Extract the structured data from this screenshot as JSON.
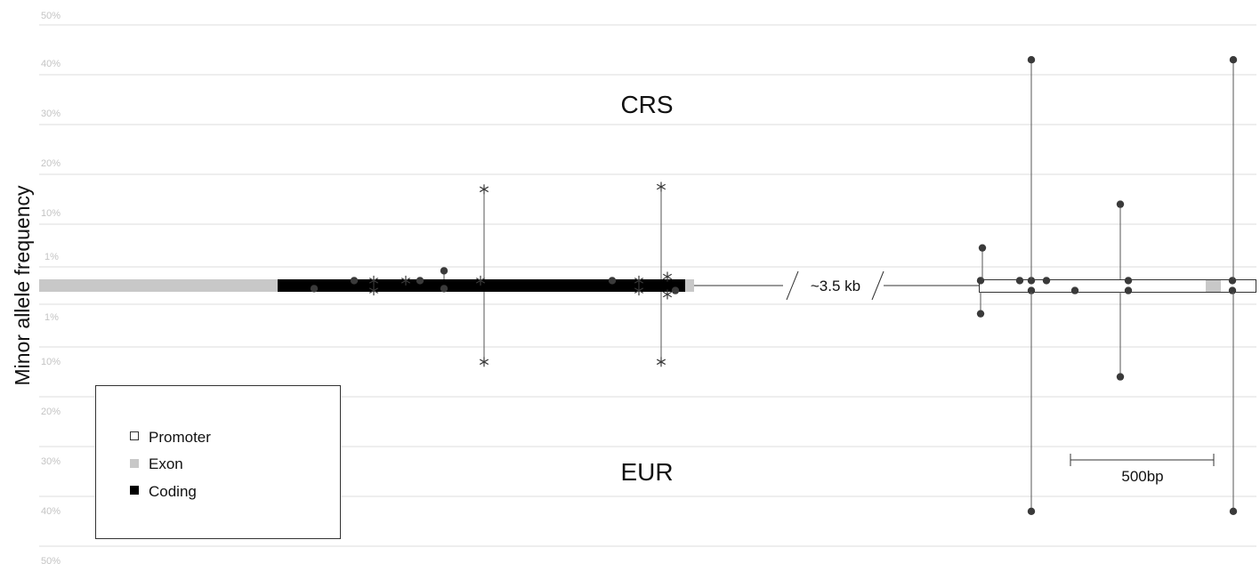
{
  "chart_data": {
    "type": "scatter",
    "ylabel": "Minor allele frequency",
    "y_axis": {
      "scale": "piecewise: 0–1% expanded, 10% steps above",
      "ticks_top": [
        "50%",
        "40%",
        "30%",
        "20%",
        "10%",
        "1%"
      ],
      "ticks_bottom": [
        "1%",
        "10%",
        "20%",
        "30%",
        "40%",
        "50%"
      ],
      "grid": true
    },
    "groups": {
      "top": "CRS",
      "bottom": "EUR"
    },
    "annotations": {
      "gap": "~3.5 kb",
      "scale_bar": "500bp"
    },
    "legend": {
      "placement": "bottom-left",
      "items": [
        {
          "label": "Promoter",
          "color": "#ffffff",
          "stroke": "#333333"
        },
        {
          "label": "Exon",
          "color": "#c8c8c8"
        },
        {
          "label": "Coding",
          "color": "#000000"
        }
      ]
    },
    "colors": {
      "coding": "#000000",
      "exon": "#c8c8c8",
      "promoter": "#ffffff",
      "marker": "#3a3a3a",
      "grid": "#d9d9d9",
      "stem": "#555555"
    },
    "marker_types": {
      "dot": "filled circle",
      "star": "asterisk"
    },
    "variants": [
      {
        "pos": 353,
        "crs": 0,
        "eur": 0.2,
        "marker": "dot"
      },
      {
        "pos": 398,
        "crs": 0.3,
        "eur": 0,
        "marker": "dot"
      },
      {
        "pos": 420,
        "crs": 0.3,
        "eur": 0.3,
        "marker": "star"
      },
      {
        "pos": 456,
        "crs": 0.3,
        "eur": 0,
        "marker": "star"
      },
      {
        "pos": 472,
        "crs": 0.3,
        "eur": 0,
        "marker": "dot"
      },
      {
        "pos": 499,
        "crs": 0.8,
        "eur": 0.2,
        "marker": "dot"
      },
      {
        "pos": 540,
        "crs": 0.3,
        "eur": 0,
        "marker": "star"
      },
      {
        "pos": 544,
        "crs": 17,
        "eur": 13,
        "marker": "star"
      },
      {
        "pos": 688,
        "crs": 0.3,
        "eur": 0,
        "marker": "dot"
      },
      {
        "pos": 718,
        "crs": 0.3,
        "eur": 0.3,
        "marker": "star"
      },
      {
        "pos": 743,
        "crs": 17.5,
        "eur": 13,
        "marker": "star"
      },
      {
        "pos": 750,
        "crs": 0.5,
        "eur": 0.5,
        "marker": "star"
      },
      {
        "pos": 759,
        "crs": 0,
        "eur": 0.3,
        "marker": "dot"
      },
      {
        "pos": 1102,
        "crs": 0.3,
        "eur": 3,
        "marker": "dot"
      },
      {
        "pos": 1104,
        "crs": 5,
        "eur": 0,
        "marker": "dot"
      },
      {
        "pos": 1146,
        "crs": 0.3,
        "eur": 0,
        "marker": "dot"
      },
      {
        "pos": 1159,
        "crs": 0.3,
        "eur": 0.3,
        "marker": "dot"
      },
      {
        "pos": 1159,
        "crs": 43,
        "eur": 43,
        "marker": "dot"
      },
      {
        "pos": 1176,
        "crs": 0.3,
        "eur": 0,
        "marker": "dot"
      },
      {
        "pos": 1208,
        "crs": 0,
        "eur": 0.3,
        "marker": "dot"
      },
      {
        "pos": 1259,
        "crs": 14,
        "eur": 16,
        "marker": "dot"
      },
      {
        "pos": 1268,
        "crs": 0.3,
        "eur": 0.3,
        "marker": "dot"
      },
      {
        "pos": 1385,
        "crs": 0.3,
        "eur": 0.3,
        "marker": "dot"
      },
      {
        "pos": 1386,
        "crs": 43,
        "eur": 43,
        "marker": "dot"
      }
    ]
  }
}
